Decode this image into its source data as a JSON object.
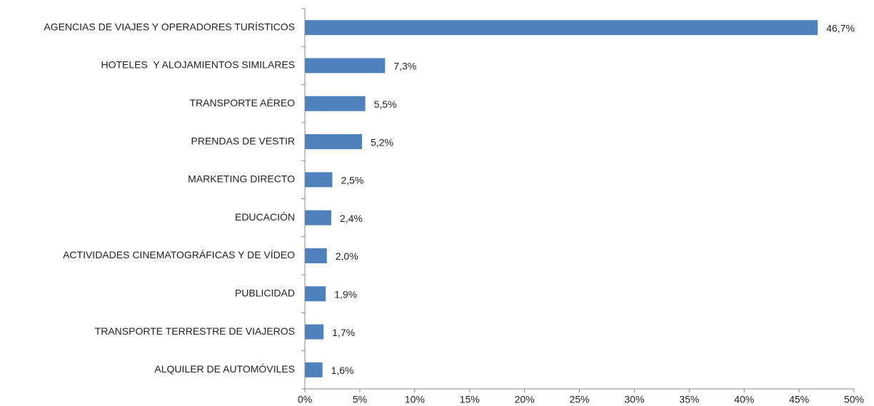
{
  "chart_data": {
    "type": "hbar",
    "categories": [
      "AGENCIAS DE VIAJES Y OPERADORES TURÍSTICOS",
      "HOTELES  Y ALOJAMIENTOS SIMILARES",
      "TRANSPORTE AÉREO",
      "PRENDAS DE VESTIR",
      "MARKETING DIRECTO",
      "EDUCACIÓN",
      "ACTIVIDADES CINEMATOGRÁFICAS Y DE VÍDEO",
      "PUBLICIDAD",
      "TRANSPORTE TERRESTRE DE VIAJEROS",
      "ALQUILER DE AUTOMÓVILES"
    ],
    "values": [
      46.7,
      7.3,
      5.5,
      5.2,
      2.5,
      2.4,
      2.0,
      1.9,
      1.7,
      1.6
    ],
    "value_labels": [
      "46,7%",
      "7,3%",
      "5,5%",
      "5,2%",
      "2,5%",
      "2,4%",
      "2,0%",
      "1,9%",
      "1,7%",
      "1,6%"
    ],
    "color": "#4f81bd",
    "xlim": [
      0,
      50
    ],
    "xticks": [
      {
        "value": 0,
        "label": "0%"
      },
      {
        "value": 5,
        "label": "5%"
      },
      {
        "value": 10,
        "label": "10%"
      },
      {
        "value": 15,
        "label": "15%"
      },
      {
        "value": 20,
        "label": "20%"
      },
      {
        "value": 25,
        "label": "25%"
      },
      {
        "value": 30,
        "label": "30%"
      },
      {
        "value": 35,
        "label": "35%"
      },
      {
        "value": 40,
        "label": "40%"
      },
      {
        "value": 45,
        "label": "45%"
      },
      {
        "value": 50,
        "label": "50%"
      }
    ],
    "grid": false
  }
}
